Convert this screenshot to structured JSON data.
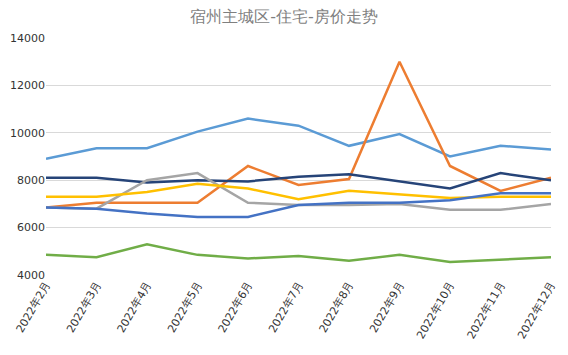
{
  "chart_data": {
    "type": "line",
    "title": "宿州主城区-住宅-房价走势",
    "categories": [
      "2022年2月",
      "2022年3月",
      "2022年4月",
      "2022年5月",
      "2022年6月",
      "2022年7月",
      "2022年8月",
      "2022年9月",
      "2022年10月",
      "2022年11月",
      "2022年12月"
    ],
    "series": [
      {
        "color": "#5b9bd5",
        "values": [
          8900,
          9350,
          9350,
          10050,
          10600,
          10300,
          9450,
          9950,
          9000,
          9450,
          9300
        ]
      },
      {
        "color": "#ed7d31",
        "values": [
          6850,
          7050,
          7050,
          7050,
          8600,
          7800,
          8050,
          13000,
          8600,
          7550,
          8100
        ]
      },
      {
        "color": "#264478",
        "values": [
          8100,
          8100,
          7900,
          8000,
          7950,
          8150,
          8250,
          7950,
          7650,
          8300,
          8000
        ]
      },
      {
        "color": "#a5a5a5",
        "values": [
          6850,
          6800,
          8000,
          8300,
          7050,
          6950,
          6950,
          7000,
          6750,
          6750,
          7000
        ]
      },
      {
        "color": "#ffc000",
        "values": [
          7300,
          7300,
          7500,
          7850,
          7650,
          7200,
          7550,
          7400,
          7250,
          7300,
          7300
        ]
      },
      {
        "color": "#4472c4",
        "values": [
          6850,
          6800,
          6600,
          6450,
          6450,
          6950,
          7050,
          7050,
          7150,
          7450,
          7450
        ]
      },
      {
        "color": "#70ad47",
        "values": [
          4850,
          4750,
          5300,
          4850,
          4700,
          4800,
          4600,
          4850,
          4550,
          4650,
          4750
        ]
      }
    ],
    "ylim": [
      4000,
      14000
    ],
    "yticks": [
      4000,
      6000,
      8000,
      10000,
      12000,
      14000
    ],
    "grid": true
  }
}
